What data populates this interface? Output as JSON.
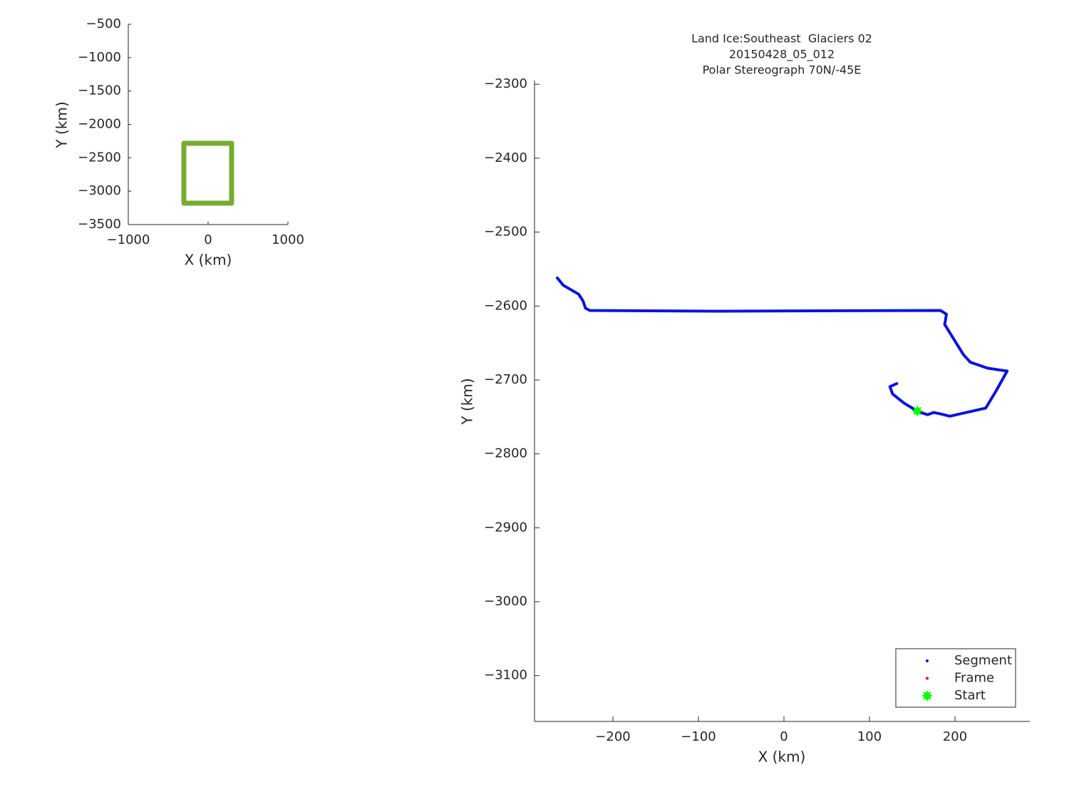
{
  "chart_data": [
    {
      "type": "line",
      "x_label": "X (km)",
      "y_label": "Y (km)",
      "xlim": [
        -1000,
        1000
      ],
      "ylim": [
        -3500,
        -500
      ],
      "xticks": [
        {
          "value": -1000,
          "label": "−1000"
        },
        0,
        1000
      ],
      "yticks": [
        {
          "value": -500,
          "label": "−500"
        },
        {
          "value": -1000,
          "label": "−1000"
        },
        {
          "value": -1500,
          "label": "−1500"
        },
        {
          "value": -2000,
          "label": "−2000"
        },
        {
          "value": -2500,
          "label": "−2500"
        },
        {
          "value": -3000,
          "label": "−3000"
        },
        {
          "value": -3500,
          "label": "−3500"
        }
      ],
      "series": [
        {
          "color": "#77ac30",
          "style": "thick-line",
          "x": [
            -304,
            295,
            295,
            -304,
            -304
          ],
          "y": [
            -2283,
            -2283,
            -3180,
            -3180,
            -2283
          ]
        }
      ]
    },
    {
      "type": "line",
      "title": [
        "Land Ice:Southeast  Glaciers 02",
        "20150428_05_012",
        "Polar Stereograph 70N/-45E"
      ],
      "x_label": "X (km)",
      "y_label": "Y (km)",
      "xlim": [
        -291.7,
        287.5
      ],
      "ylim": [
        -3162,
        -2295
      ],
      "xticks": [
        {
          "value": -200,
          "label": "−200"
        },
        {
          "value": -100,
          "label": "−100"
        },
        0,
        100,
        200
      ],
      "yticks": [
        {
          "value": -2300,
          "label": "−2300"
        },
        {
          "value": -2400,
          "label": "−2400"
        },
        {
          "value": -2500,
          "label": "−2500"
        },
        {
          "value": -2600,
          "label": "−2600"
        },
        {
          "value": -2700,
          "label": "−2700"
        },
        {
          "value": -2800,
          "label": "−2800"
        },
        {
          "value": -2900,
          "label": "−2900"
        },
        {
          "value": -3000,
          "label": "−3000"
        },
        {
          "value": -3100,
          "label": "−3100"
        }
      ],
      "legend": "lower right",
      "series": [
        {
          "name": "Segment",
          "color": "#0a14dc",
          "style": "line",
          "x": [
            -265,
            -258,
            -240,
            -235,
            -232,
            -227,
            -83,
            183,
            190,
            188,
            210,
            218,
            238,
            261,
            248,
            236,
            194,
            183,
            175,
            168,
            157,
            140,
            127,
            124,
            132
          ],
          "y": [
            -2562,
            -2572,
            -2584,
            -2593,
            -2603,
            -2606,
            -2607,
            -2606,
            -2611,
            -2625,
            -2666,
            -2676,
            -2684,
            -2688,
            -2715,
            -2738,
            -2749,
            -2746,
            -2744,
            -2747,
            -2743,
            -2731,
            -2719,
            -2709,
            -2705
          ]
        },
        {
          "name": "Frame",
          "color": "#ff0000",
          "style": "dot",
          "x": [],
          "y": []
        },
        {
          "name": "Start",
          "color": "#00ff00",
          "style": "star",
          "x": [
            156
          ],
          "y": [
            -2742
          ]
        }
      ]
    }
  ]
}
